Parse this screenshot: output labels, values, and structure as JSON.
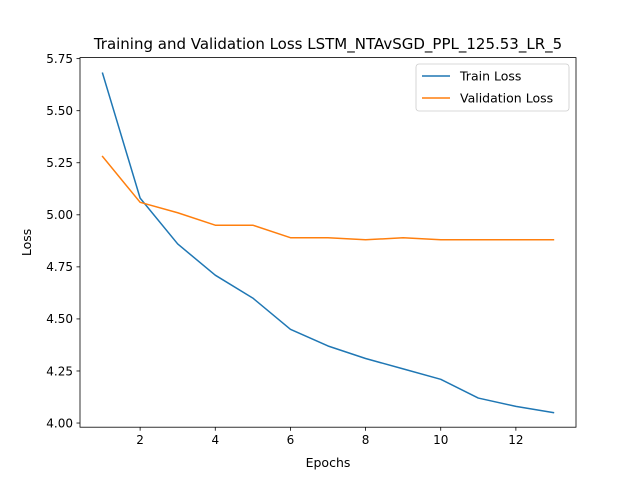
{
  "chart_data": {
    "type": "line",
    "title": "Training and Validation Loss LSTM_NTAvSGD_PPL_125.53_LR_5",
    "xlabel": "Epochs",
    "ylabel": "Loss",
    "xlim": [
      0.4,
      13.6
    ],
    "ylim": [
      3.98,
      5.755
    ],
    "xticks": [
      2,
      4,
      6,
      8,
      10,
      12
    ],
    "yticks": [
      4.0,
      4.25,
      4.5,
      4.75,
      5.0,
      5.25,
      5.5,
      5.75
    ],
    "xtick_labels": [
      "2",
      "4",
      "6",
      "8",
      "10",
      "12"
    ],
    "ytick_labels": [
      "4.00",
      "4.25",
      "4.50",
      "4.75",
      "5.00",
      "5.25",
      "5.50",
      "5.75"
    ],
    "grid": false,
    "legend_position": "top-right",
    "x": [
      1,
      2,
      3,
      4,
      5,
      6,
      7,
      8,
      9,
      10,
      11,
      12,
      13
    ],
    "series": [
      {
        "name": "Train Loss",
        "color": "#1f77b4",
        "values": [
          5.68,
          5.08,
          4.86,
          4.71,
          4.6,
          4.45,
          4.37,
          4.31,
          4.26,
          4.21,
          4.12,
          4.08,
          4.05
        ]
      },
      {
        "name": "Validation Loss",
        "color": "#ff7f0e",
        "values": [
          5.28,
          5.06,
          5.01,
          4.95,
          4.95,
          4.89,
          4.89,
          4.88,
          4.89,
          4.88,
          4.88,
          4.88,
          4.88
        ]
      }
    ]
  }
}
